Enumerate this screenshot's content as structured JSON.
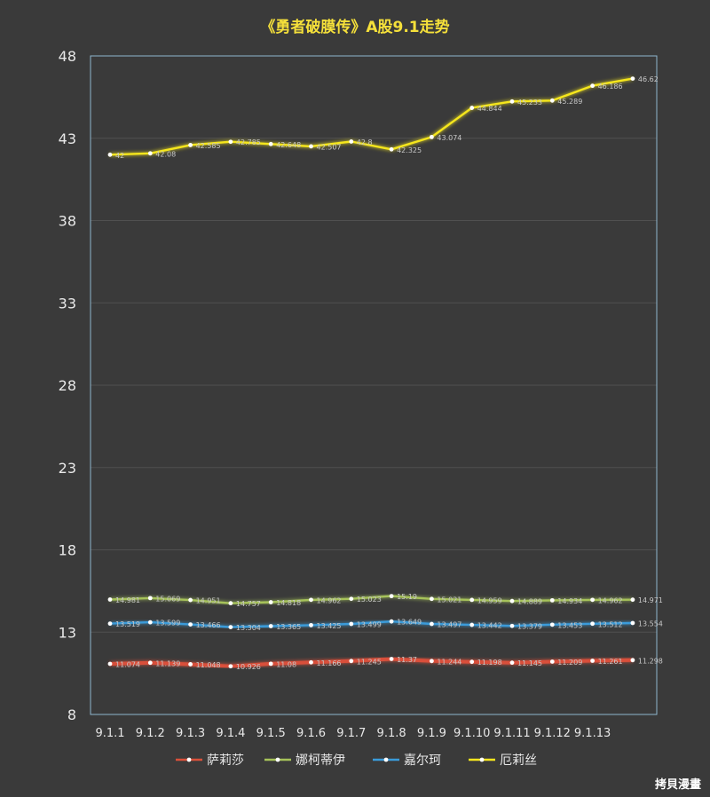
{
  "chart_data": {
    "type": "line",
    "title": "《勇者破膜传》A股9.1走势",
    "categories": [
      "9.1.1",
      "9.1.2",
      "9.1.3",
      "9.1.4",
      "9.1.5",
      "9.1.6",
      "9.1.7",
      "9.1.8",
      "9.1.9",
      "9.1.10",
      "9.1.11",
      "9.1.12",
      "9.1.13",
      ""
    ],
    "y_ticks": [
      "48",
      "43",
      "38",
      "33",
      "28",
      "23",
      "18",
      "13",
      "8"
    ],
    "ylim": [
      8,
      48
    ],
    "grid": true,
    "legend_position": "bottom",
    "series": [
      {
        "name": "萨莉莎",
        "color": "#d9503a",
        "labels": [
          "11.074",
          "11.139",
          "11.048",
          "10.926",
          "11.08",
          "11.166",
          "11.245",
          "11.37",
          "11.244",
          "11.198",
          "11.145",
          "11.209",
          "11.261",
          "11.298"
        ],
        "values": [
          11.074,
          11.139,
          11.048,
          10.926,
          11.08,
          11.166,
          11.245,
          11.37,
          11.244,
          11.198,
          11.145,
          11.209,
          11.261,
          11.298
        ]
      },
      {
        "name": "娜柯蒂伊",
        "color": "#a6c25a",
        "labels": [
          "14.981",
          "15.069",
          "14.951",
          "14.757",
          "14.818",
          "14.962",
          "15.023",
          "15.19",
          "15.021",
          "14.959",
          "14.889",
          "14.934",
          "14.962",
          "14.971"
        ],
        "values": [
          14.981,
          15.069,
          14.951,
          14.757,
          14.818,
          14.962,
          15.023,
          15.19,
          15.021,
          14.959,
          14.889,
          14.934,
          14.962,
          14.971
        ]
      },
      {
        "name": "嘉尔珂",
        "color": "#3a9bd9",
        "labels": [
          "13.519",
          "13.599",
          "13.466",
          "13.304",
          "13.365",
          "13.425",
          "13.499",
          "13.649",
          "13.497",
          "13.442",
          "13.379",
          "13.453",
          "13.512",
          "13.554"
        ],
        "values": [
          13.519,
          13.599,
          13.466,
          13.304,
          13.365,
          13.425,
          13.499,
          13.649,
          13.497,
          13.442,
          13.379,
          13.453,
          13.512,
          13.554
        ]
      },
      {
        "name": "厄莉丝",
        "color": "#f5e61e",
        "labels": [
          "42",
          "42.08",
          "42.585",
          "42.785",
          "42.648",
          "42.507",
          "42.8",
          "42.325",
          "43.074",
          "44.844",
          "45.233",
          "45.289",
          "46.186",
          "46.62"
        ],
        "values": [
          42,
          42.08,
          42.585,
          42.785,
          42.648,
          42.507,
          42.8,
          42.325,
          43.074,
          44.844,
          45.233,
          45.289,
          46.186,
          46.62
        ]
      }
    ]
  },
  "watermark": "拷貝漫畫"
}
